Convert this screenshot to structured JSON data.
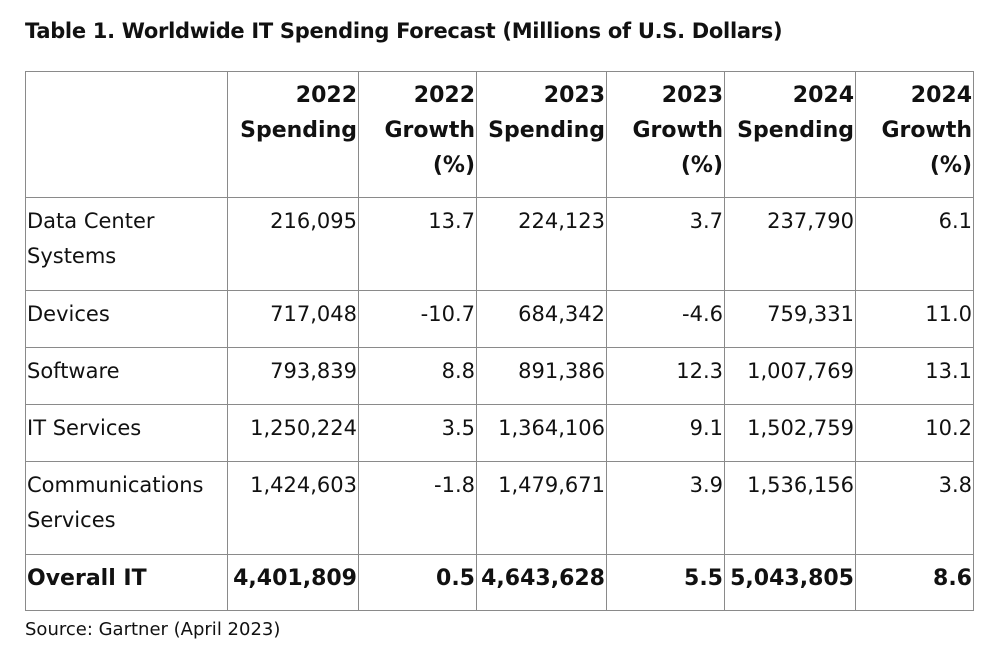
{
  "title": "Table 1. Worldwide IT Spending Forecast (Millions of U.S. Dollars)",
  "table": {
    "headers": [
      "",
      "2022 Spending",
      "2022 Growth (%)",
      "2023 Spending",
      "2023 Growth (%)",
      "2024 Spending",
      "2024 Growth (%)"
    ],
    "rows": [
      [
        "Data Center Systems",
        "216,095",
        "13.7",
        "224,123",
        "3.7",
        "237,790",
        "6.1"
      ],
      [
        "Devices",
        "717,048",
        "-10.7",
        "684,342",
        "-4.6",
        "759,331",
        "11.0"
      ],
      [
        "Software",
        "793,839",
        "8.8",
        "891,386",
        "12.3",
        "1,007,769",
        "13.1"
      ],
      [
        "IT Services",
        "1,250,224",
        "3.5",
        "1,364,106",
        "9.1",
        "1,502,759",
        "10.2"
      ],
      [
        "Communications Services",
        "1,424,603",
        "-1.8",
        "1,479,671",
        "3.9",
        "1,536,156",
        "3.8"
      ],
      [
        "Overall IT",
        "4,401,809",
        "0.5",
        "4,643,628",
        "5.5",
        "5,043,805",
        "8.6"
      ]
    ]
  },
  "source": "Source: Gartner (April 2023)"
}
